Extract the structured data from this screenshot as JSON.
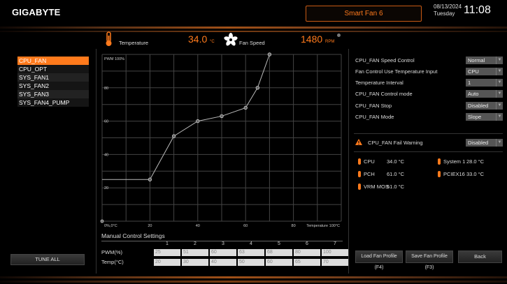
{
  "header": {
    "logo": "GIGABYTE",
    "tab": "Smart Fan 6",
    "date": "08/13/2024",
    "day": "Tuesday",
    "time": "11:08"
  },
  "status": {
    "temp_label": "Temperature",
    "temp_value": "34.0",
    "temp_unit": "°C",
    "fan_label": "Fan Speed",
    "fan_value": "1480",
    "fan_unit": "RPM"
  },
  "sidebar": {
    "items": [
      {
        "label": "CPU_FAN",
        "selected": true
      },
      {
        "label": "CPU_OPT"
      },
      {
        "label": "SYS_FAN1"
      },
      {
        "label": "SYS_FAN2"
      },
      {
        "label": "SYS_FAN3"
      },
      {
        "label": "SYS_FAN4_PUMP"
      }
    ],
    "tune_all": "TUNE ALL"
  },
  "settings": [
    {
      "label": "CPU_FAN Speed Control",
      "value": "Normal"
    },
    {
      "label": "Fan Control Use Temperature Input",
      "value": "CPU"
    },
    {
      "label": "Temperature Interval",
      "value": "1"
    },
    {
      "label": "CPU_FAN Control mode",
      "value": "Auto"
    },
    {
      "label": "CPU_FAN Stop",
      "value": "Disabled"
    },
    {
      "label": "CPU_FAN Mode",
      "value": "Slope"
    }
  ],
  "fail_warning": {
    "label": "CPU_FAN Fail Warning",
    "value": "Disabled"
  },
  "temps": [
    {
      "name": "CPU",
      "value": "34.0 °C"
    },
    {
      "name": "System 1",
      "value": "28.0 °C"
    },
    {
      "name": "PCH",
      "value": "61.0 °C"
    },
    {
      "name": "PCIEX16",
      "value": "33.0 °C"
    },
    {
      "name": "VRM MOS",
      "value": "51.0 °C"
    }
  ],
  "manual": {
    "title": "Manual Control Settings",
    "columns": [
      "1",
      "2",
      "3",
      "4",
      "5",
      "6",
      "7"
    ],
    "pwm_label": "PWM(%)",
    "temp_label": "Temp(°C)",
    "pwm": [
      "25",
      "51",
      "60",
      "63",
      "68",
      "80",
      "100"
    ],
    "temp": [
      "20",
      "30",
      "40",
      "50",
      "60",
      "65",
      "70"
    ]
  },
  "buttons": {
    "load": "Load Fan Profile (F4)",
    "save": "Save Fan Profile (F3)",
    "back": "Back"
  },
  "colors": {
    "accent": "#ff7a1c"
  },
  "chart_data": {
    "type": "line",
    "xlabel": "Temperature 100°C",
    "ylabel": "PWM 100%",
    "origin_label": "0%,0°C",
    "xlim": [
      0,
      100
    ],
    "ylim": [
      0,
      100
    ],
    "x_ticks": [
      "20",
      "40",
      "60",
      "80"
    ],
    "y_ticks": [
      "20",
      "40",
      "60",
      "80"
    ],
    "grid": true,
    "x": [
      20,
      30,
      40,
      50,
      60,
      65,
      70
    ],
    "values": [
      25,
      51,
      60,
      63,
      68,
      80,
      100
    ]
  }
}
